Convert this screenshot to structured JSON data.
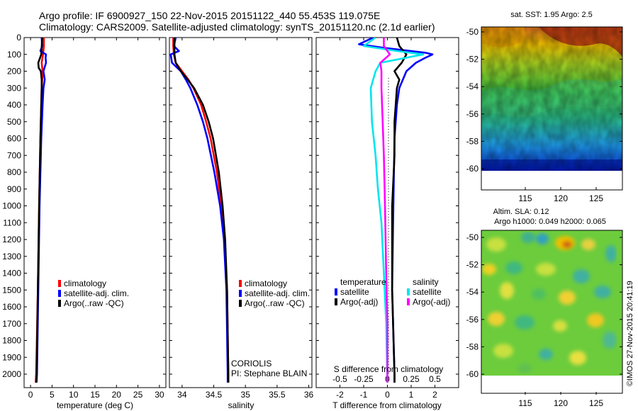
{
  "header": {
    "title_line1": "Argo profile: IF 6900927_150 22-Nov-2015 20151122_440 55.453S 119.075E",
    "title_line2": "Climatology: CARS2009. Satellite-adjusted climatology: synTS_20151120.nc (2.1d earlier)"
  },
  "colors": {
    "climatology": "#ff0000",
    "satellite": "#0000ff",
    "argo": "#000000",
    "sat_salinity": "#00e5ee",
    "argo_salinity": "#ff00ff"
  },
  "depth_axis": {
    "ticks": [
      0,
      100,
      200,
      300,
      400,
      500,
      600,
      700,
      800,
      900,
      1000,
      1100,
      1200,
      1300,
      1400,
      1500,
      1600,
      1700,
      1800,
      1900,
      2000
    ],
    "range": [
      0,
      2080
    ]
  },
  "chart_data": [
    {
      "type": "line",
      "id": "temperature",
      "xlabel": "temperature (deg C)",
      "xticks": [
        0,
        5,
        10,
        15,
        20,
        25,
        30
      ],
      "xlim": [
        -1.5,
        31.5
      ],
      "legend": [
        "climatology",
        "satellite-adj. clim.",
        "Argo(..raw -QC)"
      ],
      "series": [
        {
          "name": "climatology",
          "color": "#ff0000",
          "depth": [
            0,
            50,
            100,
            150,
            200,
            250,
            300,
            400,
            600,
            1000,
            1500,
            2000,
            2050
          ],
          "values": [
            3.1,
            3.1,
            2.9,
            2.6,
            2.8,
            2.7,
            2.6,
            2.5,
            2.3,
            2.0,
            1.7,
            1.3,
            1.2
          ]
        },
        {
          "name": "satellite-adj. clim.",
          "color": "#0000ff",
          "depth": [
            0,
            50,
            80,
            100,
            120,
            150,
            200,
            250,
            300,
            400,
            600,
            1000,
            1500,
            2000,
            2050
          ],
          "values": [
            2.6,
            2.7,
            2.3,
            3.6,
            3.5,
            3.6,
            3.0,
            3.3,
            3.0,
            2.8,
            2.5,
            2.1,
            1.8,
            1.5,
            1.4
          ]
        },
        {
          "name": "Argo(..raw -QC)",
          "color": "#000000",
          "depth": [
            0,
            60,
            100,
            150,
            180,
            200,
            250,
            300,
            400,
            600,
            1000,
            1500,
            2000,
            2050
          ],
          "values": [
            2.7,
            2.6,
            2.5,
            1.8,
            1.9,
            2.4,
            2.6,
            2.6,
            2.5,
            2.3,
            2.0,
            1.7,
            1.4,
            1.3
          ]
        }
      ]
    },
    {
      "type": "line",
      "id": "salinity",
      "xlabel": "salinity",
      "xticks": [
        34,
        34.5,
        35,
        35.5,
        36
      ],
      "xlim": [
        33.8,
        36.05
      ],
      "legend": [
        "climatology",
        "satellite-adj. clim.",
        "Argo(..raw -QC)"
      ],
      "annotation": [
        "CORIOLIS",
        "PI: Stephane BLAIN"
      ],
      "series": [
        {
          "name": "climatology",
          "color": "#ff0000",
          "depth": [
            0,
            50,
            100,
            150,
            200,
            250,
            300,
            400,
            500,
            600,
            800,
            1000,
            1200,
            1500,
            2000,
            2050
          ],
          "values": [
            33.86,
            33.86,
            33.87,
            33.9,
            34.0,
            34.1,
            34.18,
            34.3,
            34.38,
            34.45,
            34.55,
            34.62,
            34.67,
            34.71,
            34.73,
            34.73
          ]
        },
        {
          "name": "satellite-adj. clim.",
          "color": "#0000ff",
          "depth": [
            0,
            50,
            80,
            100,
            150,
            200,
            250,
            300,
            400,
            500,
            600,
            800,
            1000,
            1200,
            1500,
            2000,
            2050
          ],
          "values": [
            33.9,
            33.87,
            33.95,
            33.82,
            33.84,
            33.98,
            34.06,
            34.13,
            34.24,
            34.33,
            34.4,
            34.51,
            34.6,
            34.66,
            34.7,
            34.72,
            34.72
          ]
        },
        {
          "name": "Argo(..raw -QC)",
          "color": "#000000",
          "depth": [
            0,
            60,
            100,
            150,
            200,
            250,
            300,
            400,
            500,
            600,
            800,
            1000,
            1200,
            1500,
            2000,
            2050
          ],
          "values": [
            33.88,
            33.88,
            33.88,
            33.9,
            33.98,
            34.09,
            34.19,
            34.33,
            34.42,
            34.49,
            34.58,
            34.64,
            34.68,
            34.71,
            34.73,
            34.73
          ]
        }
      ]
    },
    {
      "type": "line",
      "id": "difference",
      "xlabel": "T difference from climatology",
      "xticks": [
        -2,
        -1,
        0,
        1,
        2
      ],
      "xlim": [
        -3,
        3
      ],
      "toplabel": "S difference from climatology",
      "topticks": [
        "-0.5",
        "-0.25",
        "0",
        "0.25",
        "0.5"
      ],
      "legend_titles": [
        "temperature",
        "salinity"
      ],
      "legend": [
        "satellite",
        "Argo(-adj)",
        "satellite",
        "Argo(-adj)"
      ],
      "series": [
        {
          "name": "satellite",
          "group": "temperature",
          "color": "#0000ff",
          "depth": [
            0,
            40,
            60,
            80,
            90,
            100,
            120,
            150,
            200,
            300,
            400,
            600,
            1000,
            1500,
            2000,
            2050
          ],
          "values": [
            -0.6,
            -1.2,
            -0.2,
            1.0,
            1.6,
            1.9,
            1.6,
            1.2,
            0.8,
            0.5,
            0.4,
            0.3,
            0.25,
            0.2,
            0.3,
            0.3
          ]
        },
        {
          "name": "Argo(-adj)",
          "group": "temperature",
          "color": "#000000",
          "depth": [
            0,
            50,
            100,
            150,
            200,
            250,
            300,
            500,
            700,
            1000,
            1500,
            2000,
            2050
          ],
          "values": [
            0.4,
            0.5,
            0.8,
            0.6,
            0.3,
            0.5,
            0.4,
            0.3,
            0.3,
            0.2,
            0.2,
            0.3,
            0.3
          ]
        },
        {
          "name": "satellite",
          "group": "salinity",
          "color": "#00e5ee",
          "depth": [
            0,
            50,
            80,
            100,
            150,
            200,
            300,
            500,
            700,
            900,
            1100,
            1400,
            1700,
            2050
          ],
          "values": [
            -0.5,
            -1.0,
            0.4,
            1.5,
            -0.3,
            -0.5,
            -0.7,
            -0.65,
            -0.5,
            -0.4,
            -0.25,
            -0.15,
            -0.05,
            0
          ]
        },
        {
          "name": "Argo(-adj)",
          "group": "salinity",
          "color": "#ff00ff",
          "depth": [
            0,
            50,
            100,
            150,
            200,
            300,
            500,
            700,
            1000,
            1400,
            1700,
            2050
          ],
          "values": [
            -0.15,
            -0.15,
            0.1,
            -0.3,
            -0.25,
            -0.25,
            -0.2,
            -0.15,
            -0.1,
            -0.05,
            0,
            0
          ]
        }
      ]
    }
  ],
  "maps": {
    "sst": {
      "title": "sat. SST: 1.95 Argo: 2.5",
      "yticks": [
        "-50",
        "-52",
        "-54",
        "-56",
        "-58",
        "-60"
      ],
      "xticks": [
        "115",
        "120",
        "125"
      ]
    },
    "sla": {
      "title_line1": "Altim. SLA: 0.12",
      "title_line2": "Argo h1000: 0.049 h2000: 0.065",
      "yticks": [
        "-50",
        "-52",
        "-54",
        "-56",
        "-58",
        "-60"
      ],
      "xticks": [
        "115",
        "120",
        "125"
      ]
    }
  },
  "footer": {
    "stamp": "©IMOS 27-Nov-2015 20:41:19"
  }
}
